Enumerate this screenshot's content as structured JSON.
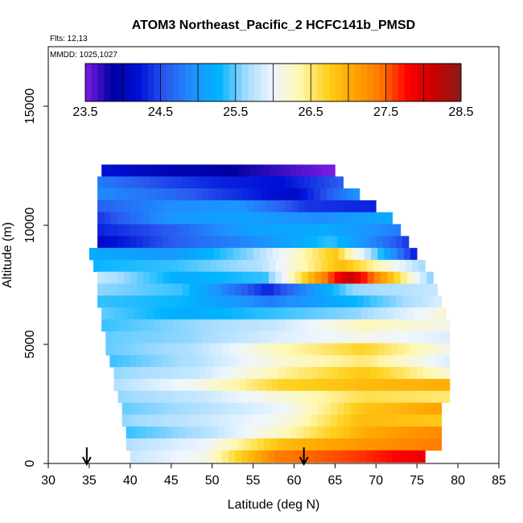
{
  "chart_data": {
    "type": "heatmap",
    "title": "ATOM3 Northeast_Pacific_2 HCFC141b_PMSD",
    "flights_label": "Flts: 12,13",
    "dates_label": "MMDD: 1025,1027",
    "xlabel": "Latitude (deg N)",
    "ylabel": "Altitude (m)",
    "xlim": [
      30,
      85
    ],
    "ylim": [
      0,
      17500
    ],
    "xticks": [
      "30",
      "35",
      "40",
      "45",
      "50",
      "55",
      "60",
      "65",
      "70",
      "75",
      "80",
      "85"
    ],
    "yticks": [
      "0",
      "5000",
      "10000",
      "15000"
    ],
    "colorbar": {
      "min": 23.5,
      "max": 28.5,
      "tick_labels": [
        "23.5",
        "24.5",
        "25.5",
        "26.5",
        "27.5",
        "28.5"
      ],
      "colors": [
        "#7a1ee6",
        "#0000a0",
        "#0010d8",
        "#2a5af0",
        "#1e90ff",
        "#00b4ff",
        "#a6dcff",
        "#eef6ff",
        "#fff7b0",
        "#ffd21e",
        "#ffa500",
        "#ff7800",
        "#ff0000",
        "#c80000",
        "#8b1a1a"
      ]
    },
    "arrows": [
      {
        "lat": 34.7,
        "altitude": 0
      },
      {
        "lat": 61.2,
        "altitude": 0
      }
    ],
    "rows": [
      {
        "alt": 12300,
        "lat_start": 36.5,
        "lat_end": 65.0,
        "values": [
          24.2,
          24.0,
          23.9,
          23.7,
          23.5
        ]
      },
      {
        "alt": 11800,
        "lat_start": 36.0,
        "lat_end": 66.0,
        "values": [
          24.8,
          24.5,
          24.3,
          24.2,
          24.6
        ]
      },
      {
        "alt": 11300,
        "lat_start": 36.0,
        "lat_end": 68.0,
        "values": [
          24.9,
          24.7,
          24.4,
          24.1,
          25.0
        ]
      },
      {
        "alt": 10800,
        "lat_start": 36.0,
        "lat_end": 70.0,
        "values": [
          24.6,
          24.9,
          25.0,
          24.4,
          24.3
        ]
      },
      {
        "alt": 10300,
        "lat_start": 36.0,
        "lat_end": 72.0,
        "values": [
          24.4,
          25.0,
          25.1,
          24.9,
          25.2
        ]
      },
      {
        "alt": 9800,
        "lat_start": 36.0,
        "lat_end": 73.0,
        "values": [
          24.3,
          24.6,
          25.1,
          25.2,
          24.8
        ]
      },
      {
        "alt": 9300,
        "lat_start": 36.0,
        "lat_end": 74.0,
        "values": [
          24.1,
          24.6,
          24.9,
          25.4,
          24.4
        ]
      },
      {
        "alt": 8800,
        "lat_start": 35.0,
        "lat_end": 75.0,
        "values": [
          25.2,
          25.0,
          25.6,
          26.8,
          24.2
        ]
      },
      {
        "alt": 8300,
        "lat_start": 35.5,
        "lat_end": 76.0,
        "values": [
          25.3,
          25.4,
          25.7,
          26.9,
          25.6
        ]
      },
      {
        "alt": 7800,
        "lat_start": 36.0,
        "lat_end": 77.0,
        "values": [
          25.8,
          25.2,
          25.4,
          28.2,
          25.5
        ]
      },
      {
        "alt": 7300,
        "lat_start": 36.0,
        "lat_end": 77.5,
        "values": [
          25.6,
          25.4,
          24.3,
          25.6,
          25.8
        ]
      },
      {
        "alt": 6800,
        "lat_start": 36.0,
        "lat_end": 78.0,
        "values": [
          25.4,
          25.3,
          24.8,
          25.3,
          25.9
        ]
      },
      {
        "alt": 6300,
        "lat_start": 36.5,
        "lat_end": 78.5,
        "values": [
          25.5,
          25.2,
          25.4,
          25.6,
          26.2
        ]
      },
      {
        "alt": 5800,
        "lat_start": 36.5,
        "lat_end": 79.0,
        "values": [
          25.4,
          25.6,
          25.8,
          26.3,
          26.1
        ]
      },
      {
        "alt": 5300,
        "lat_start": 37.0,
        "lat_end": 79.0,
        "values": [
          25.5,
          25.6,
          25.9,
          26.1,
          25.9
        ]
      },
      {
        "alt": 4800,
        "lat_start": 37.0,
        "lat_end": 79.0,
        "values": [
          25.5,
          25.7,
          26.3,
          26.7,
          26.1
        ]
      },
      {
        "alt": 4300,
        "lat_start": 37.5,
        "lat_end": 79.0,
        "values": [
          25.4,
          25.7,
          26.2,
          26.5,
          25.9
        ]
      },
      {
        "alt": 3800,
        "lat_start": 38.0,
        "lat_end": 79.0,
        "values": [
          25.6,
          25.8,
          26.4,
          26.8,
          26.2
        ]
      },
      {
        "alt": 3300,
        "lat_start": 38.0,
        "lat_end": 79.0,
        "values": [
          25.7,
          26.1,
          26.7,
          26.9,
          27.0
        ]
      },
      {
        "alt": 2800,
        "lat_start": 38.5,
        "lat_end": 79.0,
        "values": [
          25.6,
          25.8,
          26.2,
          26.6,
          26.5
        ]
      },
      {
        "alt": 2300,
        "lat_start": 39.0,
        "lat_end": 78.0,
        "values": [
          25.5,
          25.7,
          26.0,
          26.8,
          27.1
        ]
      },
      {
        "alt": 1800,
        "lat_start": 39.0,
        "lat_end": 78.0,
        "values": [
          25.6,
          25.8,
          26.1,
          26.9,
          26.8
        ]
      },
      {
        "alt": 1300,
        "lat_start": 39.5,
        "lat_end": 78.0,
        "values": [
          25.4,
          25.7,
          26.3,
          27.0,
          27.3
        ]
      },
      {
        "alt": 800,
        "lat_start": 39.5,
        "lat_end": 78.0,
        "values": [
          25.7,
          26.0,
          26.9,
          27.2,
          27.4
        ]
      },
      {
        "alt": 300,
        "lat_start": 40.0,
        "lat_end": 76.0,
        "values": [
          25.8,
          26.1,
          27.4,
          27.6,
          27.9
        ]
      }
    ]
  }
}
